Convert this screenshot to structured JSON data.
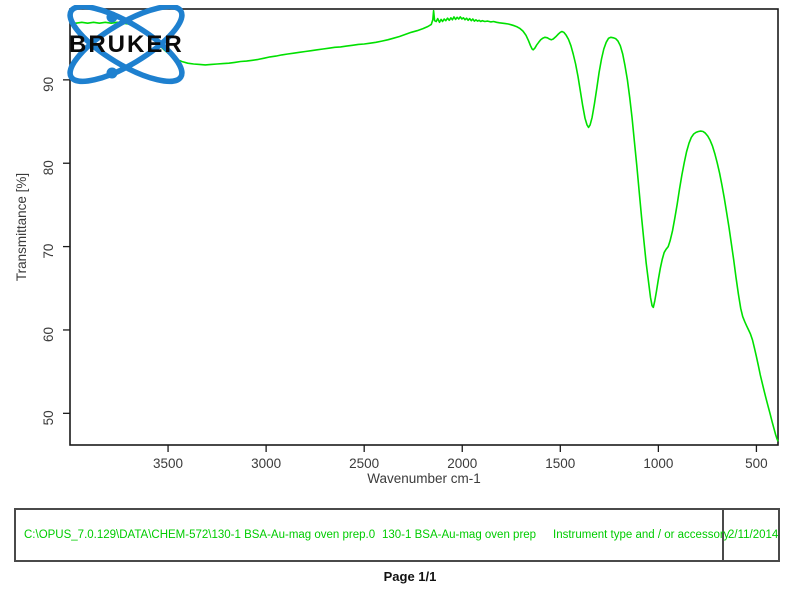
{
  "page": {
    "page_label": "Page 1/1"
  },
  "logo": {
    "brand": "BRUKER",
    "color": "#1e80cf"
  },
  "chart_data": {
    "type": "line",
    "title": "",
    "xlabel": "Wavenumber cm-1",
    "ylabel": "Transmittance [%]",
    "x_ticks": [
      3500,
      3000,
      2500,
      2000,
      1500,
      1000,
      500
    ],
    "y_ticks": [
      50,
      60,
      70,
      80,
      90
    ],
    "xlim": [
      4000,
      390
    ],
    "ylim": [
      46.2,
      98.5
    ],
    "x_axis_reversed": true,
    "grid": false,
    "legend": "none",
    "line_color": "#00e000",
    "series": [
      {
        "name": "130-1 BSA-Au-mag oven prep",
        "points": [
          [
            4000,
            96.9
          ],
          [
            3970,
            96.8
          ],
          [
            3940,
            96.9
          ],
          [
            3910,
            96.8
          ],
          [
            3880,
            96.9
          ],
          [
            3850,
            96.8
          ],
          [
            3820,
            96.9
          ],
          [
            3790,
            96.8
          ],
          [
            3760,
            96.9
          ],
          [
            3730,
            96.8
          ],
          [
            3700,
            96.7
          ],
          [
            3670,
            96.45
          ],
          [
            3640,
            96.1
          ],
          [
            3610,
            95.6
          ],
          [
            3580,
            95.0
          ],
          [
            3550,
            94.3
          ],
          [
            3520,
            93.6
          ],
          [
            3490,
            93.0
          ],
          [
            3460,
            92.5
          ],
          [
            3430,
            92.2
          ],
          [
            3400,
            92.0
          ],
          [
            3370,
            91.9
          ],
          [
            3340,
            91.85
          ],
          [
            3310,
            91.8
          ],
          [
            3280,
            91.85
          ],
          [
            3250,
            91.9
          ],
          [
            3220,
            91.95
          ],
          [
            3190,
            92.0
          ],
          [
            3160,
            92.1
          ],
          [
            3130,
            92.2
          ],
          [
            3100,
            92.25
          ],
          [
            3070,
            92.35
          ],
          [
            3040,
            92.45
          ],
          [
            3010,
            92.6
          ],
          [
            2980,
            92.75
          ],
          [
            2950,
            92.85
          ],
          [
            2920,
            93.0
          ],
          [
            2890,
            93.1
          ],
          [
            2860,
            93.2
          ],
          [
            2830,
            93.3
          ],
          [
            2800,
            93.4
          ],
          [
            2770,
            93.5
          ],
          [
            2740,
            93.6
          ],
          [
            2710,
            93.7
          ],
          [
            2680,
            93.8
          ],
          [
            2650,
            93.9
          ],
          [
            2620,
            93.95
          ],
          [
            2590,
            94.05
          ],
          [
            2560,
            94.15
          ],
          [
            2530,
            94.25
          ],
          [
            2500,
            94.3
          ],
          [
            2470,
            94.4
          ],
          [
            2440,
            94.5
          ],
          [
            2410,
            94.65
          ],
          [
            2380,
            94.8
          ],
          [
            2350,
            95.0
          ],
          [
            2320,
            95.2
          ],
          [
            2290,
            95.45
          ],
          [
            2260,
            95.7
          ],
          [
            2230,
            95.9
          ],
          [
            2200,
            96.15
          ],
          [
            2175,
            96.4
          ],
          [
            2158,
            96.65
          ],
          [
            2150,
            97.2
          ],
          [
            2146,
            98.3
          ],
          [
            2141,
            97.1
          ],
          [
            2133,
            97.0
          ],
          [
            2125,
            97.35
          ],
          [
            2116,
            96.9
          ],
          [
            2108,
            97.25
          ],
          [
            2100,
            97.0
          ],
          [
            2092,
            97.3
          ],
          [
            2084,
            97.1
          ],
          [
            2075,
            97.4
          ],
          [
            2066,
            97.15
          ],
          [
            2058,
            97.45
          ],
          [
            2050,
            97.2
          ],
          [
            2042,
            97.55
          ],
          [
            2034,
            97.25
          ],
          [
            2026,
            97.5
          ],
          [
            2018,
            97.3
          ],
          [
            2010,
            97.55
          ],
          [
            2002,
            97.3
          ],
          [
            1994,
            97.45
          ],
          [
            1986,
            97.2
          ],
          [
            1978,
            97.4
          ],
          [
            1970,
            97.15
          ],
          [
            1962,
            97.35
          ],
          [
            1954,
            97.1
          ],
          [
            1946,
            97.3
          ],
          [
            1938,
            97.05
          ],
          [
            1930,
            97.2
          ],
          [
            1922,
            97.05
          ],
          [
            1914,
            97.15
          ],
          [
            1906,
            97.0
          ],
          [
            1898,
            97.1
          ],
          [
            1885,
            97.0
          ],
          [
            1870,
            97.05
          ],
          [
            1855,
            96.95
          ],
          [
            1840,
            97.0
          ],
          [
            1825,
            96.9
          ],
          [
            1810,
            96.85
          ],
          [
            1795,
            96.8
          ],
          [
            1780,
            96.75
          ],
          [
            1765,
            96.7
          ],
          [
            1750,
            96.6
          ],
          [
            1735,
            96.5
          ],
          [
            1720,
            96.35
          ],
          [
            1705,
            96.15
          ],
          [
            1690,
            95.85
          ],
          [
            1675,
            95.35
          ],
          [
            1662,
            94.7
          ],
          [
            1652,
            94.1
          ],
          [
            1644,
            93.7
          ],
          [
            1638,
            93.6
          ],
          [
            1630,
            93.8
          ],
          [
            1620,
            94.2
          ],
          [
            1610,
            94.5
          ],
          [
            1600,
            94.8
          ],
          [
            1590,
            95.0
          ],
          [
            1578,
            95.1
          ],
          [
            1566,
            95.05
          ],
          [
            1556,
            94.9
          ],
          [
            1546,
            94.8
          ],
          [
            1536,
            94.9
          ],
          [
            1524,
            95.15
          ],
          [
            1512,
            95.45
          ],
          [
            1500,
            95.7
          ],
          [
            1492,
            95.8
          ],
          [
            1482,
            95.7
          ],
          [
            1470,
            95.35
          ],
          [
            1458,
            94.85
          ],
          [
            1446,
            94.1
          ],
          [
            1434,
            93.1
          ],
          [
            1422,
            91.9
          ],
          [
            1410,
            90.4
          ],
          [
            1398,
            88.7
          ],
          [
            1386,
            86.9
          ],
          [
            1374,
            85.4
          ],
          [
            1364,
            84.6
          ],
          [
            1356,
            84.3
          ],
          [
            1348,
            84.6
          ],
          [
            1338,
            85.5
          ],
          [
            1326,
            87.1
          ],
          [
            1314,
            89.0
          ],
          [
            1302,
            90.9
          ],
          [
            1290,
            92.5
          ],
          [
            1278,
            93.7
          ],
          [
            1266,
            94.5
          ],
          [
            1254,
            95.0
          ],
          [
            1242,
            95.1
          ],
          [
            1230,
            95.05
          ],
          [
            1218,
            94.95
          ],
          [
            1206,
            94.65
          ],
          [
            1194,
            94.1
          ],
          [
            1182,
            93.1
          ],
          [
            1170,
            91.7
          ],
          [
            1158,
            90.0
          ],
          [
            1146,
            87.9
          ],
          [
            1134,
            85.4
          ],
          [
            1122,
            82.6
          ],
          [
            1110,
            79.7
          ],
          [
            1098,
            76.7
          ],
          [
            1086,
            73.6
          ],
          [
            1074,
            70.7
          ],
          [
            1062,
            68.0
          ],
          [
            1050,
            65.7
          ],
          [
            1040,
            63.9
          ],
          [
            1032,
            62.9
          ],
          [
            1026,
            62.7
          ],
          [
            1018,
            63.5
          ],
          [
            1010,
            64.6
          ],
          [
            1000,
            66.1
          ],
          [
            990,
            67.4
          ],
          [
            980,
            68.5
          ],
          [
            970,
            69.3
          ],
          [
            960,
            69.7
          ],
          [
            950,
            70.0
          ],
          [
            940,
            70.7
          ],
          [
            928,
            71.9
          ],
          [
            916,
            73.4
          ],
          [
            904,
            75.1
          ],
          [
            892,
            76.9
          ],
          [
            880,
            78.6
          ],
          [
            868,
            80.1
          ],
          [
            856,
            81.4
          ],
          [
            844,
            82.4
          ],
          [
            832,
            83.1
          ],
          [
            820,
            83.5
          ],
          [
            808,
            83.7
          ],
          [
            796,
            83.8
          ],
          [
            784,
            83.85
          ],
          [
            772,
            83.8
          ],
          [
            760,
            83.6
          ],
          [
            748,
            83.25
          ],
          [
            736,
            82.75
          ],
          [
            724,
            82.05
          ],
          [
            712,
            81.15
          ],
          [
            700,
            80.05
          ],
          [
            688,
            78.8
          ],
          [
            676,
            77.4
          ],
          [
            664,
            75.8
          ],
          [
            652,
            74.1
          ],
          [
            640,
            72.3
          ],
          [
            628,
            70.4
          ],
          [
            616,
            68.4
          ],
          [
            604,
            66.3
          ],
          [
            592,
            64.3
          ],
          [
            580,
            62.6
          ],
          [
            570,
            61.6
          ],
          [
            560,
            61.0
          ],
          [
            550,
            60.5
          ],
          [
            540,
            60.0
          ],
          [
            530,
            59.5
          ],
          [
            520,
            58.8
          ],
          [
            510,
            57.8
          ],
          [
            500,
            56.8
          ],
          [
            490,
            55.7
          ],
          [
            480,
            54.6
          ],
          [
            470,
            53.6
          ],
          [
            460,
            52.6
          ],
          [
            450,
            51.7
          ],
          [
            440,
            50.8
          ],
          [
            430,
            49.9
          ],
          [
            420,
            49.0
          ],
          [
            411,
            48.2
          ],
          [
            403,
            47.5
          ],
          [
            396,
            47.0
          ],
          [
            391,
            46.7
          ]
        ]
      }
    ]
  },
  "footer": {
    "file_path": "C:\\OPUS_7.0.129\\DATA\\CHEM-572\\130-1 BSA-Au-mag oven prep.0",
    "sample_name": "130-1 BSA-Au-mag oven prep",
    "instrument_field": "Instrument type and / or accessory",
    "date": "2/11/2014",
    "text_color": "#00cc00"
  }
}
